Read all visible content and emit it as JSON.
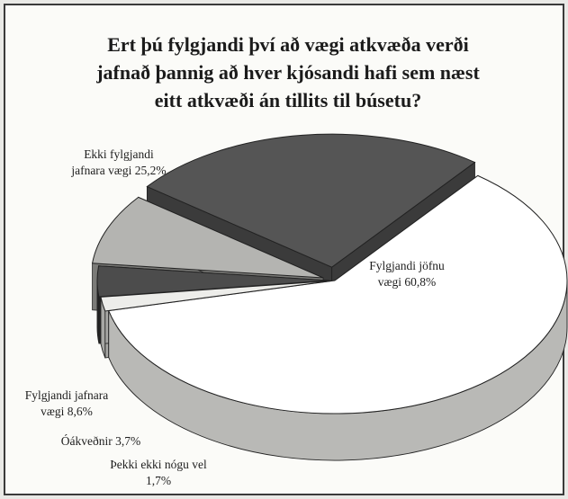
{
  "chart_data": {
    "type": "pie",
    "title": [
      "Ert þú fylgjandi því að vægi atkvæða verði",
      "jafnað þannig að hver kjósandi hafi sem næst",
      "eitt atkvæði án tillits til búsetu?"
    ],
    "slices": [
      {
        "name": "Fylgjandi jöfnu vægi",
        "value": 60.8,
        "display": "60,8%",
        "color": "#ffffff",
        "side_color": "#b9b9b6"
      },
      {
        "name": "Þekki ekki nógu vel",
        "value": 1.7,
        "display": "1,7%",
        "color": "#ededea",
        "side_color": "#a7a7a4"
      },
      {
        "name": "Óákveðnir",
        "value": 3.7,
        "display": "3,7%",
        "color": "#4c4c4c",
        "side_color": "#262626"
      },
      {
        "name": "Fylgjandi jafnara vægi",
        "value": 8.6,
        "display": "8,6%",
        "color": "#b4b4b1",
        "side_color": "#7b7b78"
      },
      {
        "name": "Ekki fylgjandi jafnara vægi",
        "value": 25.2,
        "display": "25,2%",
        "color": "#555555",
        "side_color": "#3b3b3b"
      }
    ],
    "labels": [
      {
        "lines": [
          "Fylgjandi jöfnu",
          "vægi  60,8%"
        ]
      },
      {
        "lines": [
          "Þekki ekki nógu vel",
          "1,7%"
        ]
      },
      {
        "lines": [
          "Óákveðnir  3,7%"
        ]
      },
      {
        "lines": [
          "Fylgjandi jafnara",
          "vægi  8,6%"
        ]
      },
      {
        "lines": [
          "Ekki fylgjandi",
          "jafnara vægi   25,2%"
        ]
      }
    ],
    "style": "3d-exploded"
  }
}
